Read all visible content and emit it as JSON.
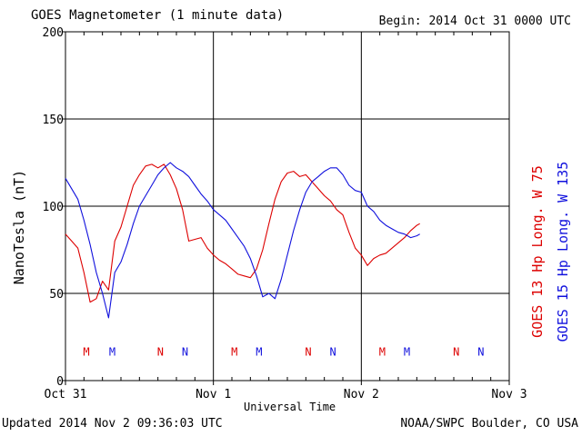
{
  "title": "GOES Magnetometer (1 minute data)",
  "begin": "Begin:  2014 Oct 31 0000 UTC",
  "updated": "Updated 2014 Nov  2 09:36:03 UTC",
  "credit": "NOAA/SWPC Boulder, CO USA",
  "colors": {
    "goes13": "#dd0000",
    "goes15": "#1010dd",
    "axis": "#000000"
  },
  "chart_data": {
    "type": "line",
    "title": "GOES Magnetometer (1 minute data)",
    "xlabel": "Universal Time",
    "ylabel": "NanoTesla (nT)",
    "xlim": [
      0,
      72
    ],
    "x_unit": "hours since 2014 Oct 31 0000 UTC",
    "ylim": [
      0,
      200
    ],
    "yticks": [
      0,
      50,
      100,
      150,
      200
    ],
    "xticks": [
      {
        "x": 0,
        "label": "Oct 31"
      },
      {
        "x": 24,
        "label": "Nov 1"
      },
      {
        "x": 48,
        "label": "Nov 2"
      },
      {
        "x": 72,
        "label": "Nov 3"
      }
    ],
    "grid": true,
    "series": [
      {
        "name": "GOES 13 Hp  Long. W 75",
        "color": "#dd0000",
        "x": [
          0,
          1,
          2,
          3,
          4,
          5,
          6,
          7,
          8,
          9,
          10,
          11,
          12,
          13,
          14,
          15,
          16,
          17,
          18,
          19,
          20,
          21,
          22,
          23,
          24,
          25,
          26,
          27,
          28,
          29,
          30,
          31,
          32,
          33,
          34,
          35,
          36,
          37,
          38,
          39,
          40,
          41,
          42,
          43,
          44,
          45,
          46,
          47,
          48,
          49,
          50,
          51,
          52,
          53,
          54,
          55,
          56,
          57,
          57.5
        ],
        "values": [
          84,
          80,
          76,
          62,
          45,
          47,
          57,
          52,
          80,
          88,
          100,
          112,
          118,
          123,
          124,
          122,
          124,
          118,
          110,
          98,
          80,
          81,
          82,
          76,
          72,
          69,
          67,
          64,
          61,
          60,
          59,
          64,
          75,
          90,
          104,
          114,
          119,
          120,
          117,
          118,
          114,
          110,
          106,
          103,
          98,
          95,
          85,
          76,
          72,
          66,
          70,
          72,
          73,
          76,
          79,
          82,
          86,
          89,
          90
        ]
      },
      {
        "name": "GOES 15 Hp  Long. W 135",
        "color": "#1010dd",
        "x": [
          0,
          1,
          2,
          3,
          4,
          5,
          6,
          7,
          8,
          9,
          10,
          11,
          12,
          13,
          14,
          15,
          16,
          17,
          18,
          19,
          20,
          21,
          22,
          23,
          24,
          25,
          26,
          27,
          28,
          29,
          30,
          31,
          32,
          33,
          34,
          35,
          36,
          37,
          38,
          39,
          40,
          41,
          42,
          43,
          44,
          45,
          46,
          47,
          48,
          49,
          50,
          51,
          52,
          53,
          54,
          55,
          56,
          57,
          57.5
        ],
        "values": [
          116,
          110,
          104,
          92,
          78,
          62,
          50,
          36,
          62,
          68,
          78,
          90,
          100,
          106,
          112,
          118,
          122,
          125,
          122,
          120,
          117,
          112,
          107,
          103,
          98,
          95,
          92,
          87,
          82,
          77,
          70,
          60,
          48,
          50,
          47,
          58,
          72,
          86,
          98,
          108,
          114,
          117,
          120,
          122,
          122,
          118,
          112,
          109,
          108,
          100,
          97,
          92,
          89,
          87,
          85,
          84,
          82,
          83,
          84
        ]
      }
    ],
    "markers": [
      {
        "label": "M",
        "x": 3.4,
        "series": "GOES 13"
      },
      {
        "label": "M",
        "x": 7.6,
        "series": "GOES 15"
      },
      {
        "label": "N",
        "x": 15.4,
        "series": "GOES 13"
      },
      {
        "label": "N",
        "x": 19.4,
        "series": "GOES 15"
      },
      {
        "label": "M",
        "x": 27.4,
        "series": "GOES 13"
      },
      {
        "label": "M",
        "x": 31.4,
        "series": "GOES 15"
      },
      {
        "label": "N",
        "x": 39.4,
        "series": "GOES 13"
      },
      {
        "label": "N",
        "x": 43.4,
        "series": "GOES 15"
      },
      {
        "label": "M",
        "x": 51.4,
        "series": "GOES 13"
      },
      {
        "label": "M",
        "x": 55.4,
        "series": "GOES 15"
      },
      {
        "label": "N",
        "x": 63.4,
        "series": "GOES 13"
      },
      {
        "label": "N",
        "x": 67.4,
        "series": "GOES 15"
      }
    ],
    "marker_y": 17
  }
}
